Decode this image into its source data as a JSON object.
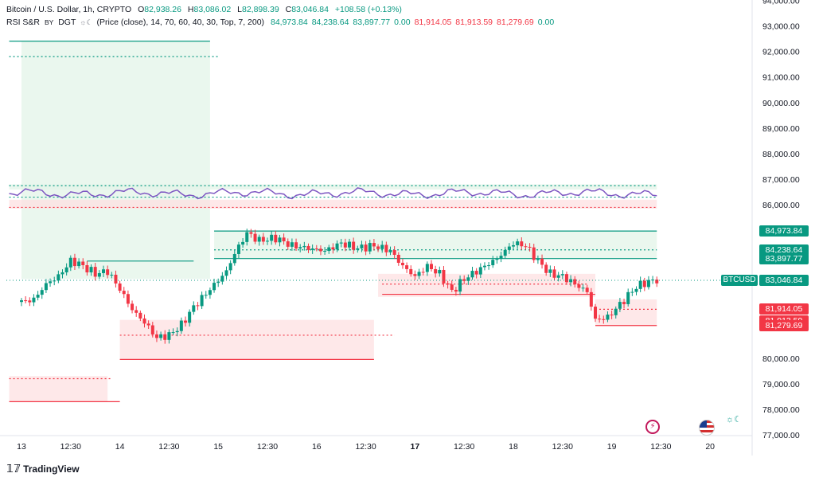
{
  "header": {
    "title": "Bitcoin / U.S. Dollar, 1h, CRYPTO",
    "open_label": "O",
    "open": "82,938.26",
    "high_label": "H",
    "high": "83,086.02",
    "low_label": "L",
    "low": "82,898.39",
    "close_label": "C",
    "close": "83,046.84",
    "change": "+108.58 (+0.13%)"
  },
  "indicator": {
    "name": "RSI S&R",
    "by": "BY",
    "author": "DGT",
    "params": "(Price (close), 14, 70, 60, 40, 30, Top, 7, 200)",
    "values": [
      "84,973.84",
      "84,238.64",
      "83,897.77",
      "0.00",
      "81,914.05",
      "81,913.59",
      "81,279.69",
      "0.00"
    ],
    "value_colors": [
      "#089981",
      "#089981",
      "#089981",
      "#089981",
      "#f23645",
      "#f23645",
      "#f23645",
      "#089981"
    ]
  },
  "price_axis": {
    "labels": [
      "94,000.00",
      "93,000.00",
      "92,000.00",
      "91,000.00",
      "90,000.00",
      "89,000.00",
      "88,000.00",
      "87,000.00",
      "86,000.00",
      "80,000.00",
      "79,000.00",
      "78,000.00",
      "77,000.00"
    ],
    "values": [
      94000,
      93000,
      92000,
      91000,
      90000,
      89000,
      88000,
      87000,
      86000,
      80000,
      79000,
      78000,
      77000
    ]
  },
  "time_axis": {
    "labels": [
      "13",
      "12:30",
      "14",
      "12:30",
      "15",
      "12:30",
      "16",
      "12:30",
      "17",
      "12:30",
      "18",
      "12:30",
      "19",
      "12:30",
      "20"
    ],
    "bold": [
      false,
      false,
      false,
      false,
      false,
      false,
      false,
      false,
      true,
      false,
      false,
      false,
      false,
      false,
      false
    ],
    "hours": [
      0,
      12,
      24,
      36,
      48,
      60,
      72,
      84,
      96,
      108,
      120,
      132,
      144,
      156,
      168
    ]
  },
  "price_badges": {
    "green": [
      "84,973.84",
      "84,238.64",
      "83,897.77"
    ],
    "green_values": [
      84973.84,
      84238.64,
      83897.77
    ],
    "red": [
      "81,914.05",
      "81,913.59",
      "81,279.69"
    ],
    "red_values": [
      81914.05,
      81913.59,
      81279.69
    ],
    "current": "83,046.84",
    "current_value": 83046.84,
    "symbol": "BTCUSD"
  },
  "colors": {
    "up": "#089981",
    "down": "#f23645",
    "rsi": "#7e57c2",
    "support_fill": "#fde0e2",
    "resistance_fill": "#e3f4e8"
  },
  "branding": {
    "logo_text": "TradingView",
    "logo_icon": "tradingview-logo-icon"
  },
  "icons": [
    "flash-icon",
    "us-flag-icon",
    "sun-moon-icon"
  ],
  "chart_data": {
    "type": "candlestick",
    "timeframe": "1h",
    "x_unit": "hours since Mar 13 00:00",
    "ylim": [
      76800,
      94000
    ],
    "grid": false,
    "anchors": [
      [
        0,
        82200
      ],
      [
        3,
        82300
      ],
      [
        6,
        82900
      ],
      [
        9,
        83200
      ],
      [
        12,
        83800
      ],
      [
        14,
        83700
      ],
      [
        18,
        83300
      ],
      [
        21,
        83400
      ],
      [
        24,
        82700
      ],
      [
        27,
        81900
      ],
      [
        30,
        81400
      ],
      [
        33,
        80800
      ],
      [
        36,
        80900
      ],
      [
        39,
        81300
      ],
      [
        42,
        82000
      ],
      [
        46,
        82700
      ],
      [
        50,
        83400
      ],
      [
        52,
        84100
      ],
      [
        55,
        84900
      ],
      [
        58,
        84600
      ],
      [
        62,
        84700
      ],
      [
        66,
        84400
      ],
      [
        70,
        84300
      ],
      [
        74,
        84200
      ],
      [
        78,
        84500
      ],
      [
        82,
        84300
      ],
      [
        86,
        84400
      ],
      [
        90,
        84200
      ],
      [
        93,
        83600
      ],
      [
        96,
        83200
      ],
      [
        99,
        83600
      ],
      [
        102,
        83300
      ],
      [
        105,
        82600
      ],
      [
        108,
        83100
      ],
      [
        112,
        83500
      ],
      [
        116,
        83900
      ],
      [
        120,
        84500
      ],
      [
        123,
        84400
      ],
      [
        126,
        83800
      ],
      [
        129,
        83300
      ],
      [
        132,
        83200
      ],
      [
        135,
        82900
      ],
      [
        138,
        82600
      ],
      [
        140,
        81500
      ],
      [
        143,
        81600
      ],
      [
        146,
        82100
      ],
      [
        150,
        82800
      ],
      [
        153,
        83000
      ],
      [
        155,
        83046
      ]
    ],
    "support_levels": [
      81914.05,
      81913.59,
      81279.69
    ],
    "resistance_levels": [
      84973.84,
      84238.64,
      83897.77
    ]
  }
}
